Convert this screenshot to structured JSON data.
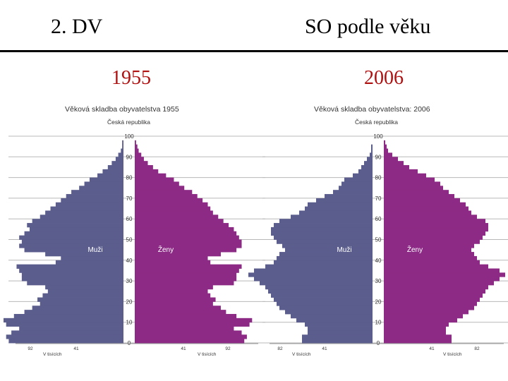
{
  "slide": {
    "title_left": "2. DV",
    "title_right": "SO podle věku",
    "year_left": "1955",
    "year_right": "2006"
  },
  "colors": {
    "men": "#5b5d8d",
    "women": "#8c2a85",
    "year": "#b01010",
    "grid": "#b8b8b8"
  },
  "chart_data": [
    {
      "type": "bar",
      "orientation": "horizontal-pyramid",
      "title": "Věková skladba obyvatelstva  1955",
      "subtitle": "Česká republika",
      "yticks": [
        0,
        10,
        20,
        30,
        40,
        50,
        60,
        70,
        80,
        90,
        100
      ],
      "ylim": [
        0,
        100
      ],
      "xticks_left": [
        "92",
        "41"
      ],
      "xticks_right": [
        "41",
        "92"
      ],
      "xlabel_left": "V tisících",
      "xlabel_right": "V tisících",
      "xlim": [
        0,
        92
      ],
      "series": [
        {
          "name": "Muži",
          "ages": [
            0,
            2,
            4,
            6,
            8,
            10,
            12,
            14,
            16,
            18,
            20,
            22,
            24,
            26,
            28,
            30,
            32,
            34,
            36,
            38,
            40,
            42,
            44,
            46,
            48,
            50,
            52,
            54,
            56,
            58,
            60,
            62,
            64,
            66,
            68,
            70,
            72,
            74,
            76,
            78,
            80,
            82,
            84,
            86,
            88,
            90,
            92,
            94,
            96,
            98
          ],
          "values": [
            88,
            90,
            86,
            80,
            90,
            92,
            84,
            76,
            70,
            64,
            66,
            62,
            58,
            60,
            74,
            78,
            78,
            80,
            82,
            52,
            48,
            60,
            76,
            80,
            78,
            80,
            76,
            72,
            74,
            70,
            64,
            60,
            56,
            52,
            48,
            44,
            40,
            34,
            30,
            26,
            20,
            16,
            12,
            9,
            6,
            4,
            2,
            1,
            1,
            0
          ]
        },
        {
          "name": "Ženy",
          "ages": [
            0,
            2,
            4,
            6,
            8,
            10,
            12,
            14,
            16,
            18,
            20,
            22,
            24,
            26,
            28,
            30,
            32,
            34,
            36,
            38,
            40,
            42,
            44,
            46,
            48,
            50,
            52,
            54,
            56,
            58,
            60,
            62,
            64,
            66,
            68,
            70,
            72,
            74,
            76,
            78,
            80,
            82,
            84,
            86,
            88,
            90,
            92,
            94,
            96,
            98
          ],
          "values": [
            84,
            86,
            82,
            76,
            88,
            90,
            78,
            70,
            66,
            60,
            62,
            58,
            56,
            60,
            76,
            78,
            78,
            80,
            82,
            58,
            56,
            66,
            78,
            82,
            82,
            80,
            78,
            76,
            72,
            68,
            64,
            60,
            58,
            56,
            52,
            48,
            44,
            38,
            34,
            30,
            24,
            18,
            14,
            10,
            7,
            5,
            3,
            2,
            1,
            0
          ]
        }
      ]
    },
    {
      "type": "bar",
      "orientation": "horizontal-pyramid",
      "title": "Věková skladba obyvatelstva: 2006",
      "subtitle": "Česká republika",
      "yticks": [
        0,
        10,
        20,
        30,
        40,
        50,
        60,
        70,
        80,
        90,
        100
      ],
      "ylim": [
        0,
        100
      ],
      "xticks_left": [
        "82",
        "41"
      ],
      "xticks_right": [
        "41",
        "82"
      ],
      "xlabel_left": "V tisících",
      "xlabel_right": "V tisících",
      "xlim": [
        0,
        82
      ],
      "series": [
        {
          "name": "Muži",
          "ages": [
            0,
            2,
            4,
            6,
            8,
            10,
            12,
            14,
            16,
            18,
            20,
            22,
            24,
            26,
            28,
            30,
            32,
            34,
            36,
            38,
            40,
            42,
            44,
            46,
            48,
            50,
            52,
            54,
            56,
            58,
            60,
            62,
            64,
            66,
            68,
            70,
            72,
            74,
            76,
            78,
            80,
            82,
            84,
            86,
            88,
            90,
            92,
            94,
            96,
            98
          ],
          "values": [
            50,
            50,
            46,
            46,
            48,
            54,
            58,
            62,
            66,
            68,
            70,
            72,
            74,
            76,
            80,
            84,
            88,
            84,
            76,
            70,
            68,
            66,
            62,
            64,
            68,
            70,
            72,
            72,
            70,
            66,
            58,
            52,
            48,
            46,
            40,
            34,
            28,
            24,
            22,
            20,
            14,
            10,
            8,
            6,
            4,
            2,
            1,
            1,
            0,
            0
          ]
        },
        {
          "name": "Ženy",
          "ages": [
            0,
            2,
            4,
            6,
            8,
            10,
            12,
            14,
            16,
            18,
            20,
            22,
            24,
            26,
            28,
            30,
            32,
            34,
            36,
            38,
            40,
            42,
            44,
            46,
            48,
            50,
            52,
            54,
            56,
            58,
            60,
            62,
            64,
            66,
            68,
            70,
            72,
            74,
            76,
            78,
            80,
            82,
            84,
            86,
            88,
            90,
            92,
            94,
            96,
            98
          ],
          "values": [
            48,
            48,
            44,
            44,
            46,
            52,
            56,
            60,
            64,
            66,
            68,
            70,
            72,
            74,
            78,
            82,
            86,
            82,
            74,
            68,
            66,
            64,
            62,
            64,
            68,
            70,
            72,
            74,
            74,
            72,
            66,
            62,
            60,
            58,
            54,
            50,
            46,
            42,
            40,
            36,
            30,
            24,
            18,
            14,
            10,
            6,
            3,
            2,
            1,
            0
          ]
        }
      ]
    }
  ]
}
